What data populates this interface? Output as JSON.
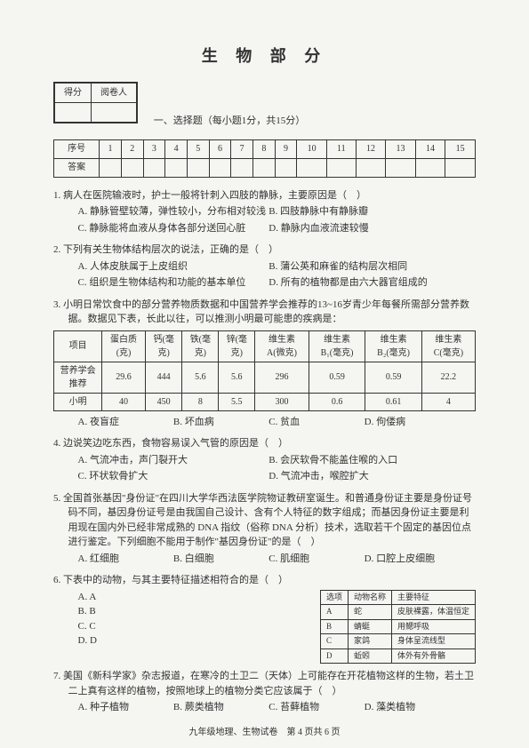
{
  "title": "生 物 部 分",
  "scoreHeaders": [
    "得分",
    "阅卷人"
  ],
  "sectionLabel": "一、选择题（每小题1分，共15分）",
  "gridLabels": {
    "row1": "序号",
    "row2": "答案"
  },
  "gridNums": [
    "1",
    "2",
    "3",
    "4",
    "5",
    "6",
    "7",
    "8",
    "9",
    "10",
    "11",
    "12",
    "13",
    "14",
    "15"
  ],
  "q1": {
    "text": "1. 病人在医院输液时，护士一般将针刺入四肢的静脉，主要原因是（　）",
    "opts": [
      "A. 静脉管壁较薄，弹性较小，分布相对较浅",
      "B. 四肢静脉中有静脉瓣",
      "C. 静脉能将血液从身体各部分送回心脏",
      "D. 静脉内血液流速较慢"
    ]
  },
  "q2": {
    "text": "2. 下列有关生物体结构层次的说法，正确的是（　）",
    "opts": [
      "A. 人体皮肤属于上皮组织",
      "B. 蒲公英和麻雀的结构层次相同",
      "C. 组织是生物体结构和功能的基本单位",
      "D. 所有的植物都是由六大器官组成的"
    ]
  },
  "q3": {
    "text": "3. 小明日常饮食中的部分营养物质数据和中国营养学会推荐的13~16岁青少年每餐所需部分营养数据。数据见下表，长此以往，可以推测小明最可能患的疾病是：",
    "tableHead": [
      "项目",
      "蛋白质(克)",
      "钙(毫克)",
      "铁(毫克)",
      "锌(毫克)",
      "维生素A(微克)",
      "维生素B₁(毫克)",
      "维生素B₂(毫克)",
      "维生素C(毫克)"
    ],
    "row1": [
      "营养学会推荐",
      "29.6",
      "444",
      "5.6",
      "5.6",
      "296",
      "0.59",
      "0.59",
      "22.2"
    ],
    "row2": [
      "小明",
      "40",
      "450",
      "8",
      "5.5",
      "300",
      "0.6",
      "0.61",
      "4"
    ],
    "opts": [
      "A. 夜盲症",
      "B. 坏血病",
      "C. 贫血",
      "D. 佝偻病"
    ]
  },
  "q4": {
    "text": "4. 边说笑边吃东西，食物容易误入气管的原因是（　）",
    "opts": [
      "A. 气流冲击，声门裂开大",
      "B. 会厌软骨不能盖住喉的入口",
      "C. 环状软骨扩大",
      "D. 气流冲击，喉腔扩大"
    ]
  },
  "q5": {
    "text": "5. 全国首张基因\"身份证\"在四川大学华西法医学院物证教研室诞生。和普通身份证主要是身份证号码不同，基因身份证号是由我国自己设计、含有个人特征的数字组成；而基因身份证主要是利用现在国内外已经非常成熟的 DNA 指纹（俗称 DNA 分析）技术，选取若干个固定的基因位点进行鉴定。下列细胞不能用于制作\"基因身份证\"的是（　）",
    "opts": [
      "A. 红细胞",
      "B. 白细胞",
      "C. 肌细胞",
      "D. 口腔上皮细胞"
    ]
  },
  "q6": {
    "text": "6. 下表中的动物，与其主要特征描述相符合的是（　）",
    "listOpts": [
      "A. A",
      "B. B",
      "C. C",
      "D. D"
    ],
    "traitHead": [
      "选项",
      "动物名称",
      "主要特征"
    ],
    "traits": [
      [
        "A",
        "蛇",
        "皮肤裸露，体温恒定"
      ],
      [
        "B",
        "蜻蜓",
        "用鳃呼吸"
      ],
      [
        "C",
        "家鸽",
        "身体呈流线型"
      ],
      [
        "D",
        "蚯蚓",
        "体外有外骨骼"
      ]
    ]
  },
  "q7": {
    "text": "7. 美国《新科学家》杂志报道，在寒冷的土卫二（天体）上可能存在开花植物这样的生物，若土卫二上真有这样的植物，按照地球上的植物分类它应该属于（　）",
    "opts": [
      "A. 种子植物",
      "B. 蕨类植物",
      "C. 苔藓植物",
      "D. 藻类植物"
    ]
  },
  "footer": "九年级地理、生物试卷　第 4 页共 6 页"
}
